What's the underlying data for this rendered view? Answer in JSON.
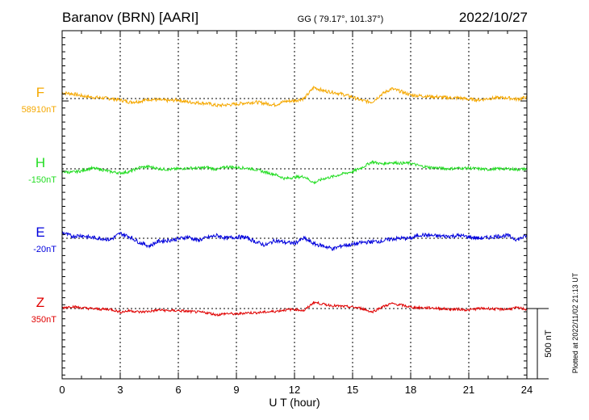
{
  "header": {
    "station": "Baranov (BRN)  [AARI]",
    "coords": "GG ( 79.17°, 101.37°)",
    "date": "2022/10/27"
  },
  "footer": {
    "plotted": "Plotted at 2022/11/02 21:13 UT",
    "scale_label": "500 nT"
  },
  "colors": {
    "F": "#f5a800",
    "H": "#22dd22",
    "E": "#0000dd",
    "Z": "#e00000",
    "axis": "#000000"
  },
  "chart_data": {
    "type": "line",
    "title": "Baranov (BRN)  [AARI]",
    "xlabel": "U T (hour)",
    "xlim": [
      0,
      24
    ],
    "x_ticks": [
      0,
      3,
      6,
      9,
      12,
      15,
      18,
      21,
      24
    ],
    "x_tick_labels": [
      "0",
      "3",
      "6",
      "9",
      "12",
      "15",
      "18",
      "21",
      "24"
    ],
    "grid": true,
    "scale_bar_nT": 500,
    "series": [
      {
        "name": "F",
        "baseline_label": "58910nT",
        "baseline_nT": 58910,
        "x": [
          0,
          0.5,
          1,
          1.5,
          2,
          2.5,
          3,
          3.5,
          4,
          4.5,
          5,
          5.5,
          6,
          6.5,
          7,
          7.5,
          8,
          8.5,
          9,
          9.5,
          10,
          10.5,
          11,
          11.5,
          12,
          12.5,
          13,
          13.5,
          14,
          14.5,
          15,
          15.5,
          16,
          16.5,
          17,
          17.5,
          18,
          18.5,
          19,
          19.5,
          20,
          20.5,
          21,
          21.5,
          22,
          22.5,
          23,
          23.5,
          24
        ],
        "y": [
          40,
          35,
          20,
          10,
          5,
          0,
          -10,
          -25,
          -20,
          -5,
          -10,
          -15,
          -10,
          -25,
          -30,
          -35,
          -50,
          -45,
          -40,
          -30,
          -25,
          -35,
          -45,
          -20,
          -15,
          0,
          80,
          55,
          45,
          30,
          10,
          -15,
          -25,
          30,
          70,
          50,
          25,
          20,
          15,
          10,
          5,
          5,
          -5,
          -10,
          0,
          5,
          5,
          -5,
          10
        ],
        "noise": 12
      },
      {
        "name": "H",
        "baseline_label": "-150nT",
        "baseline_nT": -150,
        "x": [
          0,
          0.5,
          1,
          1.5,
          2,
          2.5,
          3,
          3.5,
          4,
          4.5,
          5,
          5.5,
          6,
          6.5,
          7,
          7.5,
          8,
          8.5,
          9,
          9.5,
          10,
          10.5,
          11,
          11.5,
          12,
          12.5,
          13,
          13.5,
          14,
          14.5,
          15,
          15.5,
          16,
          16.5,
          17,
          17.5,
          18,
          18.5,
          19,
          19.5,
          20,
          20.5,
          21,
          21.5,
          22,
          22.5,
          23,
          23.5,
          24
        ],
        "y": [
          -20,
          -25,
          -15,
          5,
          -5,
          -20,
          -30,
          -20,
          10,
          15,
          0,
          -5,
          0,
          5,
          5,
          10,
          -5,
          15,
          10,
          5,
          -5,
          -25,
          -40,
          -70,
          -60,
          -55,
          -100,
          -70,
          -55,
          -35,
          -20,
          10,
          50,
          35,
          45,
          40,
          40,
          20,
          10,
          5,
          0,
          5,
          5,
          0,
          -5,
          0,
          0,
          -5,
          0
        ],
        "noise": 10
      },
      {
        "name": "E",
        "baseline_label": "-20nT",
        "baseline_nT": -20,
        "x": [
          0,
          0.5,
          1,
          1.5,
          2,
          2.5,
          3,
          3.5,
          4,
          4.5,
          5,
          5.5,
          6,
          6.5,
          7,
          7.5,
          8,
          8.5,
          9,
          9.5,
          10,
          10.5,
          11,
          11.5,
          12,
          12.5,
          13,
          13.5,
          14,
          14.5,
          15,
          15.5,
          16,
          16.5,
          17,
          17.5,
          18,
          18.5,
          19,
          19.5,
          20,
          20.5,
          21,
          21.5,
          22,
          22.5,
          23,
          23.5,
          24
        ],
        "y": [
          40,
          15,
          20,
          5,
          0,
          -10,
          35,
          10,
          -30,
          -55,
          -20,
          -15,
          -5,
          10,
          -15,
          5,
          20,
          0,
          10,
          5,
          -25,
          -50,
          -15,
          -30,
          -35,
          0,
          -40,
          -55,
          -75,
          -50,
          -45,
          -30,
          -25,
          -20,
          -5,
          0,
          0,
          25,
          20,
          15,
          15,
          20,
          10,
          0,
          5,
          15,
          20,
          -10,
          20
        ],
        "noise": 14
      },
      {
        "name": "Z",
        "baseline_label": "350nT",
        "baseline_nT": 350,
        "x": [
          0,
          0.5,
          1,
          1.5,
          2,
          2.5,
          3,
          3.5,
          4,
          4.5,
          5,
          5.5,
          6,
          6.5,
          7,
          7.5,
          8,
          8.5,
          9,
          9.5,
          10,
          10.5,
          11,
          11.5,
          12,
          12.5,
          13,
          13.5,
          14,
          14.5,
          15,
          15.5,
          16,
          16.5,
          17,
          17.5,
          18,
          18.5,
          19,
          19.5,
          20,
          20.5,
          21,
          21.5,
          22,
          22.5,
          23,
          23.5,
          24
        ],
        "y": [
          5,
          15,
          5,
          0,
          -5,
          -5,
          -25,
          -15,
          -25,
          -20,
          -10,
          -15,
          -15,
          -20,
          -25,
          -30,
          -45,
          -35,
          -40,
          -30,
          -30,
          -25,
          -20,
          -10,
          -5,
          -15,
          45,
          30,
          20,
          15,
          10,
          0,
          -25,
          10,
          35,
          25,
          10,
          5,
          5,
          0,
          -5,
          -5,
          -10,
          0,
          0,
          -5,
          -5,
          5,
          -5
        ],
        "noise": 9
      }
    ]
  }
}
